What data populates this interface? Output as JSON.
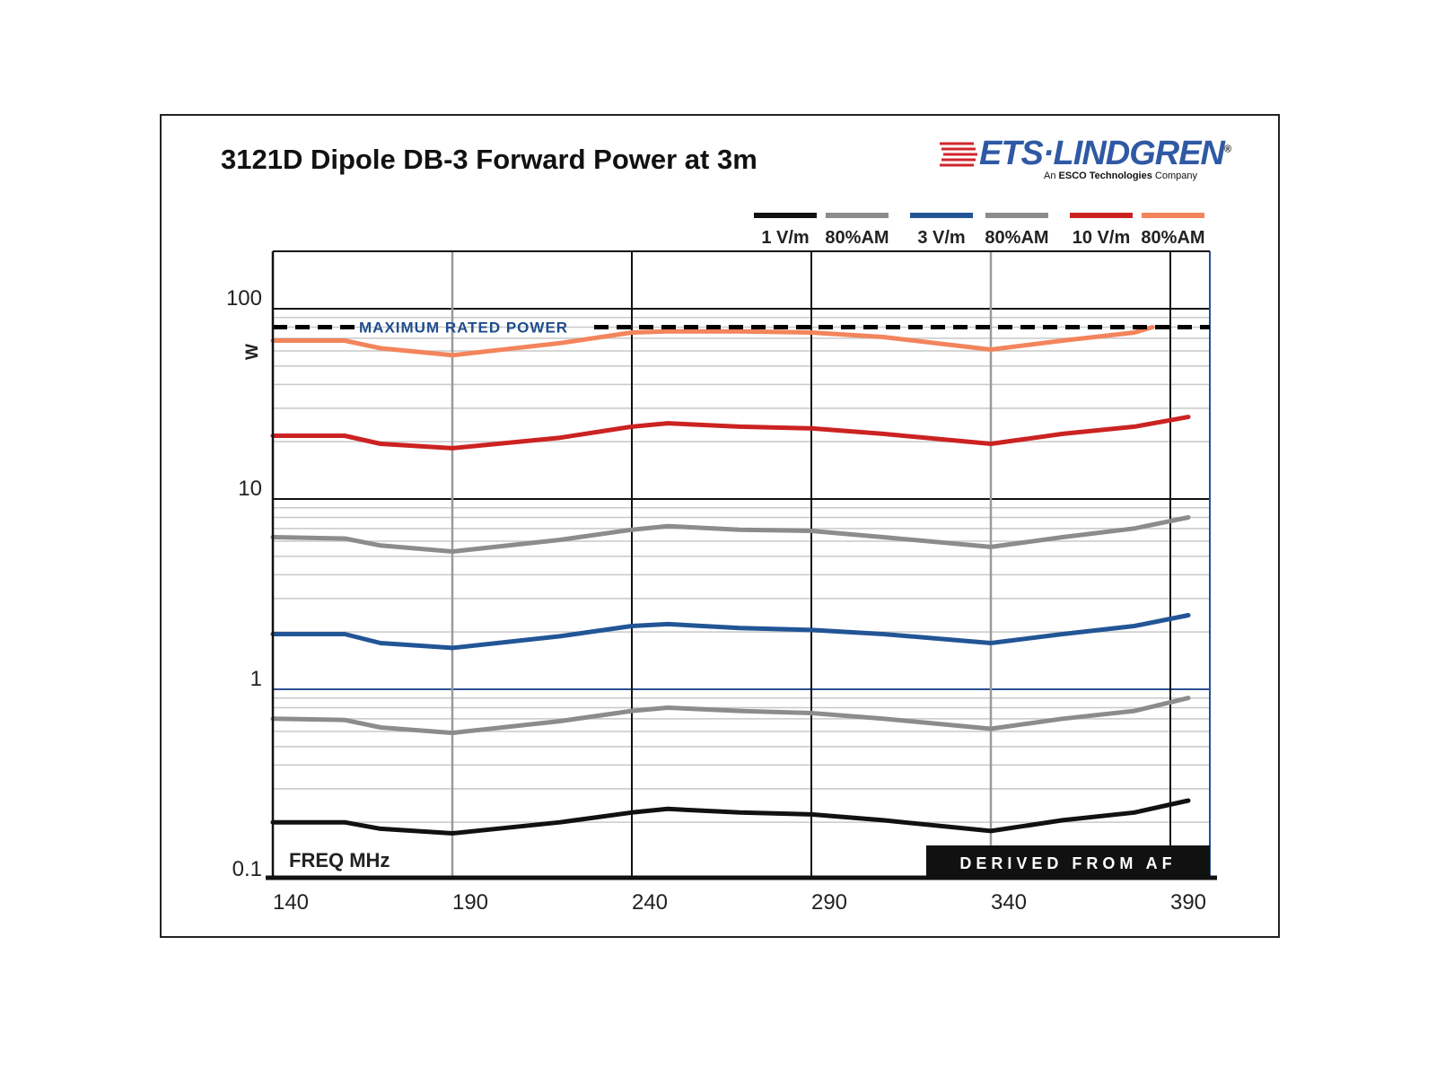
{
  "title": "3121D Dipole DB-3 Forward Power at 3m",
  "logo": {
    "name": "ETS·LINDGREN",
    "registered_mark": "®",
    "tagline_prefix": "An ",
    "tagline_bold": "ESCO Technologies",
    "tagline_suffix": " Company",
    "colors": {
      "text": "#2f59a4",
      "icon": "#d0262b"
    }
  },
  "chart_data": {
    "type": "line",
    "xlabel": "FREQ  MHz",
    "ylabel": "W",
    "y_scale": "log",
    "xlim": [
      140,
      395
    ],
    "ylim": [
      0.1,
      200
    ],
    "x_ticks": [
      140,
      190,
      240,
      290,
      340,
      390
    ],
    "x_tick_labels": [
      "140",
      "190",
      "240",
      "290",
      "340",
      "390"
    ],
    "y_ticks": [
      0.1,
      1,
      10,
      100
    ],
    "y_tick_labels": [
      "0.1",
      "1",
      "10",
      "100"
    ],
    "grid": true,
    "legend_position": "top-right",
    "reference_line": {
      "label": "MAXIMUM RATED POWER",
      "value": 80,
      "style": "dashed",
      "color": "#000000"
    },
    "annotation": "DERIVED FROM AF",
    "x": [
      140,
      160,
      170,
      190,
      220,
      240,
      250,
      270,
      290,
      310,
      340,
      360,
      380,
      395
    ],
    "series": [
      {
        "name": "1 V/m",
        "color": "#111111",
        "values": [
          0.2,
          0.2,
          0.185,
          0.175,
          0.2,
          0.225,
          0.235,
          0.225,
          0.22,
          0.205,
          0.18,
          0.205,
          0.225,
          0.26
        ]
      },
      {
        "name": "80%AM",
        "color": "#8c8c8c",
        "values": [
          0.7,
          0.69,
          0.63,
          0.59,
          0.68,
          0.77,
          0.8,
          0.77,
          0.75,
          0.7,
          0.62,
          0.7,
          0.77,
          0.9
        ]
      },
      {
        "name": "3 V/m",
        "color": "#225596",
        "values": [
          1.95,
          1.95,
          1.75,
          1.65,
          1.9,
          2.15,
          2.2,
          2.1,
          2.05,
          1.95,
          1.75,
          1.95,
          2.15,
          2.45
        ]
      },
      {
        "name": "80%AM",
        "color": "#8c8c8c",
        "values": [
          6.3,
          6.2,
          5.7,
          5.3,
          6.1,
          6.9,
          7.2,
          6.9,
          6.8,
          6.3,
          5.6,
          6.3,
          7.0,
          8.0
        ]
      },
      {
        "name": "10 V/m",
        "color": "#cc2222",
        "values": [
          21.5,
          21.5,
          19.5,
          18.5,
          21,
          24,
          25,
          24,
          23.5,
          22,
          19.5,
          22,
          24,
          27
        ]
      },
      {
        "name": "80%AM",
        "color": "#f3845c",
        "values": [
          68,
          68,
          62,
          57,
          66,
          75,
          76,
          76,
          75,
          71,
          61,
          68,
          75,
          null
        ]
      }
    ]
  }
}
